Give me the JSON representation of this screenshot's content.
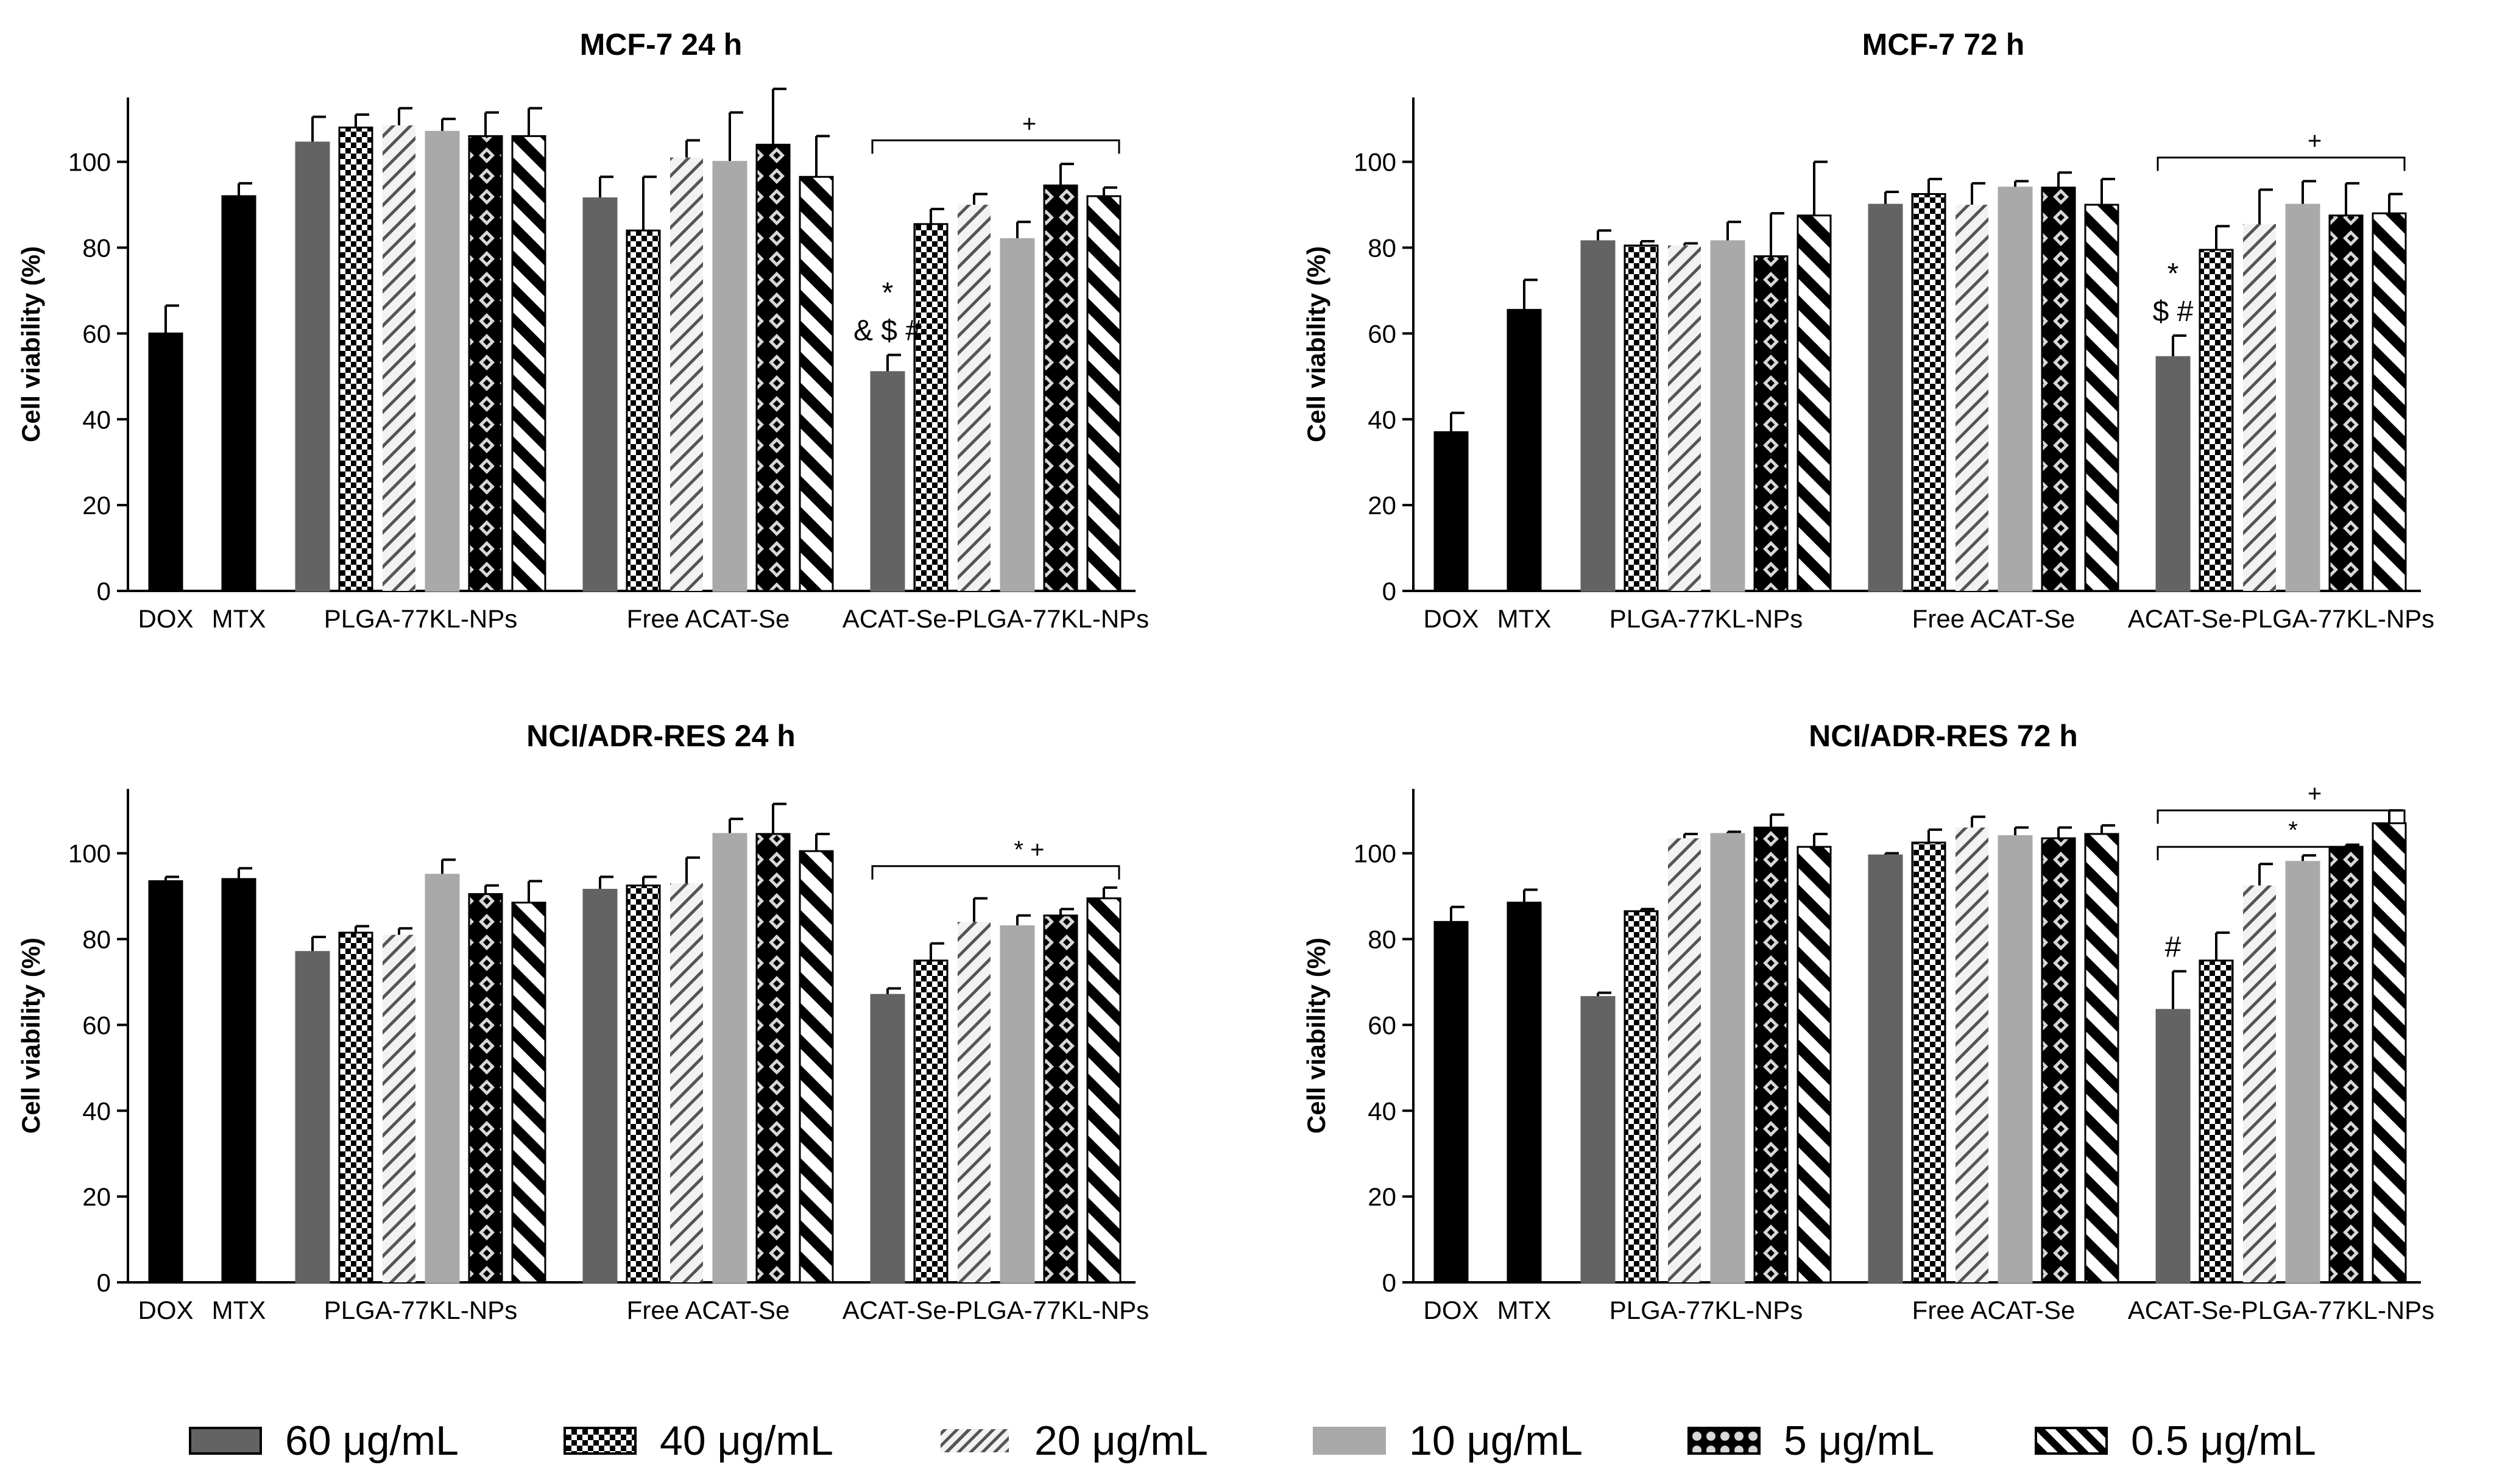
{
  "colors": {
    "control": "#000000",
    "c60": "#636363",
    "c10": "#a9a9a9",
    "pattern_ink": "#000000",
    "background": "#ffffff"
  },
  "legend": [
    {
      "label": "60 μg/mL",
      "pattern": "solid_dark"
    },
    {
      "label": "40 μg/mL",
      "pattern": "checker"
    },
    {
      "label": "20 μg/mL",
      "pattern": "diag_light"
    },
    {
      "label": "10 μg/mL",
      "pattern": "solid_light"
    },
    {
      "label": "5 μg/mL",
      "pattern": "diamond"
    },
    {
      "label": "0.5 μg/mL",
      "pattern": "diag_heavy"
    }
  ],
  "chart_data": [
    {
      "type": "bar",
      "title": "MCF-7 24 h",
      "xlabel": "",
      "ylabel": "Cell viability (%)",
      "ylim": [
        0,
        115
      ],
      "yticks": [
        0,
        20,
        40,
        60,
        80,
        100
      ],
      "group_labels": [
        "DOX",
        "MTX",
        "PLGA-77KL-NPs",
        "Free ACAT-Se",
        "ACAT-Se-PLGA-77KL-NPs"
      ],
      "controls": [
        {
          "name": "DOX",
          "value": 60,
          "error": 6.5
        },
        {
          "name": "MTX",
          "value": 92,
          "error": 3
        }
      ],
      "groups": [
        {
          "name": "PLGA-77KL-NPs",
          "values": [
            104.5,
            108,
            108.5,
            107,
            106,
            106
          ],
          "errors": [
            6,
            3,
            4,
            3,
            5.5,
            6.5
          ]
        },
        {
          "name": "Free ACAT-Se",
          "values": [
            91.5,
            84,
            101,
            100,
            104,
            96.5
          ],
          "errors": [
            5,
            12.5,
            4,
            11.5,
            13,
            9.5
          ]
        },
        {
          "name": "ACAT-Se-PLGA-77KL-NPs",
          "values": [
            51,
            85.5,
            90,
            82,
            94.5,
            92
          ],
          "errors": [
            4,
            3.5,
            2.5,
            4,
            5,
            2
          ]
        }
      ],
      "annotations": [
        {
          "text": "*",
          "group": 2,
          "bar": 0
        },
        {
          "text": "& $ #",
          "group": 2,
          "bar": 0
        }
      ],
      "brackets": [
        {
          "text": "+",
          "group": 2,
          "from_bar": 0,
          "to_bar": 5,
          "y": 105
        }
      ]
    },
    {
      "type": "bar",
      "title": "MCF-7 72 h",
      "xlabel": "",
      "ylabel": "Cell viability (%)",
      "ylim": [
        0,
        115
      ],
      "yticks": [
        0,
        20,
        40,
        60,
        80,
        100
      ],
      "group_labels": [
        "DOX",
        "MTX",
        "PLGA-77KL-NPs",
        "Free ACAT-Se",
        "ACAT-Se-PLGA-77KL-NPs"
      ],
      "controls": [
        {
          "name": "DOX",
          "value": 37,
          "error": 4.5
        },
        {
          "name": "MTX",
          "value": 65.5,
          "error": 7
        }
      ],
      "groups": [
        {
          "name": "PLGA-77KL-NPs",
          "values": [
            81.5,
            80.5,
            80.5,
            81.5,
            78,
            87.5
          ],
          "errors": [
            2.5,
            1,
            0.5,
            4.5,
            10,
            12.5
          ]
        },
        {
          "name": "Free ACAT-Se",
          "values": [
            90,
            92.5,
            90,
            94,
            94,
            90
          ],
          "errors": [
            3,
            3.5,
            5,
            1.5,
            3.5,
            6
          ]
        },
        {
          "name": "ACAT-Se-PLGA-77KL-NPs",
          "values": [
            54.5,
            79.5,
            85.5,
            90,
            87.5,
            88
          ],
          "errors": [
            5,
            5.5,
            8,
            5.5,
            7.5,
            4.5
          ]
        }
      ],
      "annotations": [
        {
          "text": "*",
          "group": 2,
          "bar": 0
        },
        {
          "text": "$ #",
          "group": 2,
          "bar": 0
        }
      ],
      "brackets": [
        {
          "text": "+",
          "group": 2,
          "from_bar": 0,
          "to_bar": 5,
          "y": 101
        }
      ]
    },
    {
      "type": "bar",
      "title": "NCI/ADR-RES 24 h",
      "xlabel": "",
      "ylabel": "Cell viability (%)",
      "ylim": [
        0,
        115
      ],
      "yticks": [
        0,
        20,
        40,
        60,
        80,
        100
      ],
      "group_labels": [
        "DOX",
        "MTX",
        "PLGA-77KL-NPs",
        "Free ACAT-Se",
        "ACAT-Se-PLGA-77KL-NPs"
      ],
      "controls": [
        {
          "name": "DOX",
          "value": 93.5,
          "error": 1
        },
        {
          "name": "MTX",
          "value": 94,
          "error": 2.5
        }
      ],
      "groups": [
        {
          "name": "PLGA-77KL-NPs",
          "values": [
            77,
            81.5,
            81,
            95,
            90.5,
            88.5
          ],
          "errors": [
            3.5,
            1.5,
            1.5,
            3.5,
            2,
            5
          ]
        },
        {
          "name": "Free ACAT-Se",
          "values": [
            91.5,
            92.5,
            93,
            104.5,
            104.5,
            100.5
          ],
          "errors": [
            3,
            2,
            6,
            3.5,
            7,
            4
          ]
        },
        {
          "name": "ACAT-Se-PLGA-77KL-NPs",
          "values": [
            67,
            75,
            84,
            83,
            85.5,
            89.5
          ],
          "errors": [
            1.5,
            4,
            5.5,
            2.5,
            1.5,
            2.5
          ]
        }
      ],
      "annotations": [],
      "brackets": [
        {
          "text": "* +",
          "group": 2,
          "from_bar": 0,
          "to_bar": 5,
          "y": 97
        }
      ]
    },
    {
      "type": "bar",
      "title": "NCI/ADR-RES 72 h",
      "xlabel": "",
      "ylabel": "Cell viability (%)",
      "ylim": [
        0,
        115
      ],
      "yticks": [
        0,
        20,
        40,
        60,
        80,
        100
      ],
      "group_labels": [
        "DOX",
        "MTX",
        "PLGA-77KL-NPs",
        "Free ACAT-Se",
        "ACAT-Se-PLGA-77KL-NPs"
      ],
      "controls": [
        {
          "name": "DOX",
          "value": 84,
          "error": 3.5
        },
        {
          "name": "MTX",
          "value": 88.5,
          "error": 3
        }
      ],
      "groups": [
        {
          "name": "PLGA-77KL-NPs",
          "values": [
            66.5,
            86.5,
            103.5,
            104.5,
            106,
            101.5
          ],
          "errors": [
            1,
            0.5,
            1,
            0.5,
            3,
            3
          ]
        },
        {
          "name": "Free ACAT-Se",
          "values": [
            99.5,
            102.5,
            106,
            104,
            103.5,
            104.5
          ],
          "errors": [
            0.5,
            3,
            2.5,
            2,
            2.5,
            2
          ]
        },
        {
          "name": "ACAT-Se-PLGA-77KL-NPs",
          "values": [
            63.5,
            75,
            92.5,
            98,
            101.5,
            107
          ],
          "errors": [
            9,
            6.5,
            5,
            1.5,
            0.5,
            3
          ]
        }
      ],
      "annotations": [
        {
          "text": "#",
          "group": 2,
          "bar": 0
        }
      ],
      "brackets": [
        {
          "text": "+",
          "group": 2,
          "from_bar": 0,
          "to_bar": 5,
          "y": 110
        },
        {
          "text": "*",
          "group": 2,
          "from_bar": 0,
          "to_bar": 4,
          "y": 101.5
        }
      ]
    }
  ]
}
